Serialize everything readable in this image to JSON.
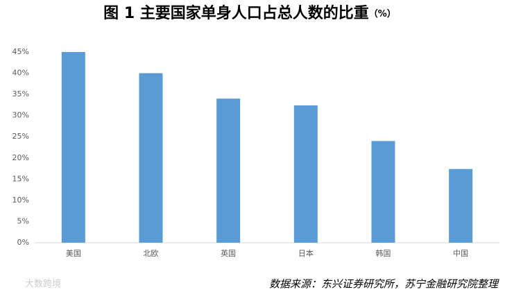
{
  "chart_data": {
    "type": "bar",
    "title": "图 1 主要国家单身人口占总人数的比重",
    "title_unit": "（%）",
    "categories": [
      "美国",
      "北欧",
      "英国",
      "日本",
      "韩国",
      "中国"
    ],
    "values": [
      45,
      40,
      34,
      32.4,
      24,
      17.4
    ],
    "color": "#5b9bd5",
    "ylim": [
      0,
      45
    ],
    "yticks": [
      {
        "value": 0,
        "label": "0%"
      },
      {
        "value": 5,
        "label": "5%"
      },
      {
        "value": 10,
        "label": "10%"
      },
      {
        "value": 15,
        "label": "15%"
      },
      {
        "value": 20,
        "label": "20%"
      },
      {
        "value": 25,
        "label": "25%"
      },
      {
        "value": 30,
        "label": "30%"
      },
      {
        "value": 35,
        "label": "35%"
      },
      {
        "value": 40,
        "label": "40%"
      },
      {
        "value": 45,
        "label": "45%"
      }
    ],
    "grid": false,
    "source": "数据来源：东兴证券研究所，苏宁金融研究院整理",
    "watermark": "大数跨境"
  }
}
